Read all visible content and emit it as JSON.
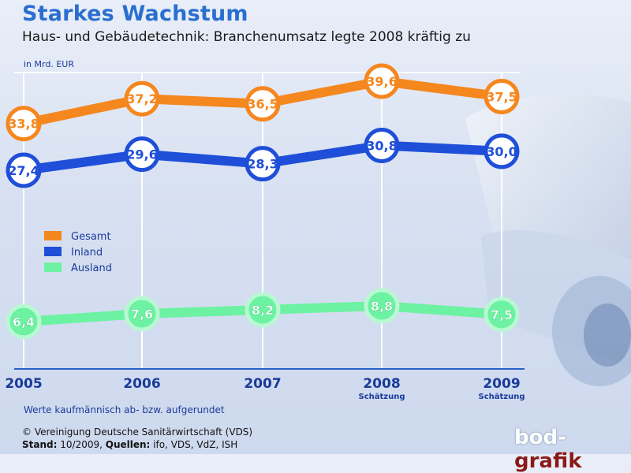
{
  "header": {
    "title": "Starkes Wachstum",
    "subtitle": "Haus- und Gebäudetechnik: Branchenumsatz legte 2008 kräftig zu",
    "unit": "in Mrd. EUR"
  },
  "footer": {
    "note": "Werte kaufmännisch ab- bzw. aufgerundet",
    "copyright": "© Vereinigung Deutsche Sanitärwirtschaft (VDS)",
    "stand_label": "Stand:",
    "stand_value": "10/2009,",
    "sources_label": "Quellen:",
    "sources_value": "ifo, VDS, VdZ, ISH"
  },
  "logo": {
    "part1": "bod",
    "dash": "-",
    "part2": "grafik"
  },
  "chart_data": {
    "type": "line",
    "x": [
      "2005",
      "2006",
      "2007",
      "2008",
      "2009"
    ],
    "x_sublabels": [
      "",
      "",
      "",
      "Schätzung",
      "Schätzung"
    ],
    "ylim": [
      0,
      42
    ],
    "grid": "vertical",
    "legend_position": "left-middle",
    "series": [
      {
        "name": "Gesamt",
        "color": "#f5871f",
        "values": [
          33.8,
          37.2,
          36.5,
          39.6,
          37.5
        ],
        "labels": [
          "33,8",
          "37,2",
          "36,5",
          "39,6",
          "37,5"
        ]
      },
      {
        "name": "Inland",
        "color": "#1f4fd8",
        "values": [
          27.4,
          29.6,
          28.3,
          30.8,
          30.0
        ],
        "labels": [
          "27,4",
          "29,6",
          "28,3",
          "30,8",
          "30,0"
        ]
      },
      {
        "name": "Ausland",
        "color": "#6cf2a2",
        "values": [
          6.4,
          7.6,
          8.2,
          8.8,
          7.5
        ],
        "labels": [
          "6,4",
          "7,6",
          "8,2",
          "8,8",
          "7,5"
        ]
      }
    ]
  }
}
